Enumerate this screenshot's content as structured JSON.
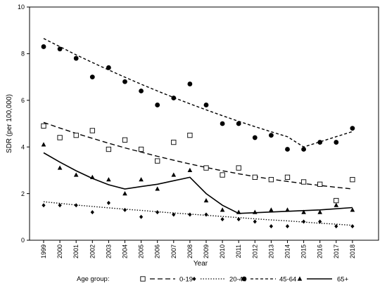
{
  "chart_data": {
    "type": "scatter",
    "title": "",
    "xlabel": "Year",
    "ylabel": "SDR (per 100,000)",
    "categories": [
      "1999",
      "2000",
      "2001",
      "2002",
      "2003",
      "2004",
      "2005",
      "2006",
      "2007",
      "2008",
      "2009",
      "2010",
      "2011",
      "2012",
      "2013",
      "2014",
      "2015",
      "2016",
      "2017",
      "2018"
    ],
    "ylim": [
      0,
      10
    ],
    "yticks": [
      "0",
      "2",
      "4",
      "6",
      "8",
      "10"
    ],
    "grid": false,
    "legend_title": "Age group:",
    "legend_position": "bottom",
    "series": [
      {
        "name": "0-19",
        "marker": "open-square",
        "line_style": "long-dash",
        "values": [
          4.9,
          4.4,
          4.5,
          4.7,
          3.9,
          4.3,
          3.9,
          3.4,
          4.2,
          4.5,
          3.1,
          2.8,
          3.1,
          2.7,
          2.6,
          2.7,
          2.5,
          2.4,
          1.7,
          2.6
        ],
        "fit": [
          5.05,
          4.81,
          4.58,
          4.37,
          4.16,
          3.96,
          3.78,
          3.6,
          3.43,
          3.27,
          3.12,
          2.98,
          2.85,
          2.73,
          2.62,
          2.52,
          2.43,
          2.35,
          2.27,
          2.2
        ]
      },
      {
        "name": "20-44",
        "marker": "diamond",
        "line_style": "dotted",
        "values": [
          1.5,
          1.5,
          1.5,
          1.2,
          1.6,
          1.3,
          1.0,
          1.2,
          1.1,
          1.1,
          1.1,
          0.9,
          0.9,
          0.8,
          0.6,
          0.6,
          0.8,
          0.8,
          0.6,
          0.6
        ],
        "fit": [
          1.65,
          1.58,
          1.51,
          1.45,
          1.39,
          1.33,
          1.28,
          1.22,
          1.17,
          1.12,
          1.07,
          1.02,
          0.97,
          0.92,
          0.87,
          0.83,
          0.78,
          0.73,
          0.69,
          0.64
        ]
      },
      {
        "name": "45-64",
        "marker": "filled-circle",
        "line_style": "short-dash",
        "values": [
          8.3,
          8.2,
          7.8,
          7.0,
          7.4,
          6.8,
          6.4,
          5.8,
          6.1,
          6.7,
          5.8,
          5.0,
          5.0,
          4.4,
          4.5,
          3.9,
          3.9,
          4.2,
          4.2,
          4.8
        ],
        "fit": [
          8.65,
          8.3,
          7.95,
          7.62,
          7.3,
          6.99,
          6.69,
          6.4,
          6.12,
          5.85,
          5.59,
          5.34,
          5.1,
          4.87,
          4.65,
          4.44,
          4.0,
          4.22,
          4.44,
          4.66
        ]
      },
      {
        "name": "65+",
        "marker": "filled-triangle",
        "line_style": "solid",
        "values": [
          4.1,
          3.1,
          2.8,
          2.7,
          2.6,
          2.0,
          2.6,
          2.2,
          2.8,
          3.0,
          1.7,
          1.3,
          1.2,
          1.2,
          1.3,
          1.3,
          1.2,
          1.2,
          1.5,
          1.3
        ],
        "fit": [
          3.75,
          3.35,
          2.98,
          2.65,
          2.38,
          2.2,
          2.3,
          2.4,
          2.55,
          2.7,
          2.0,
          1.5,
          1.15,
          1.18,
          1.21,
          1.24,
          1.27,
          1.3,
          1.35,
          1.4
        ]
      }
    ]
  }
}
